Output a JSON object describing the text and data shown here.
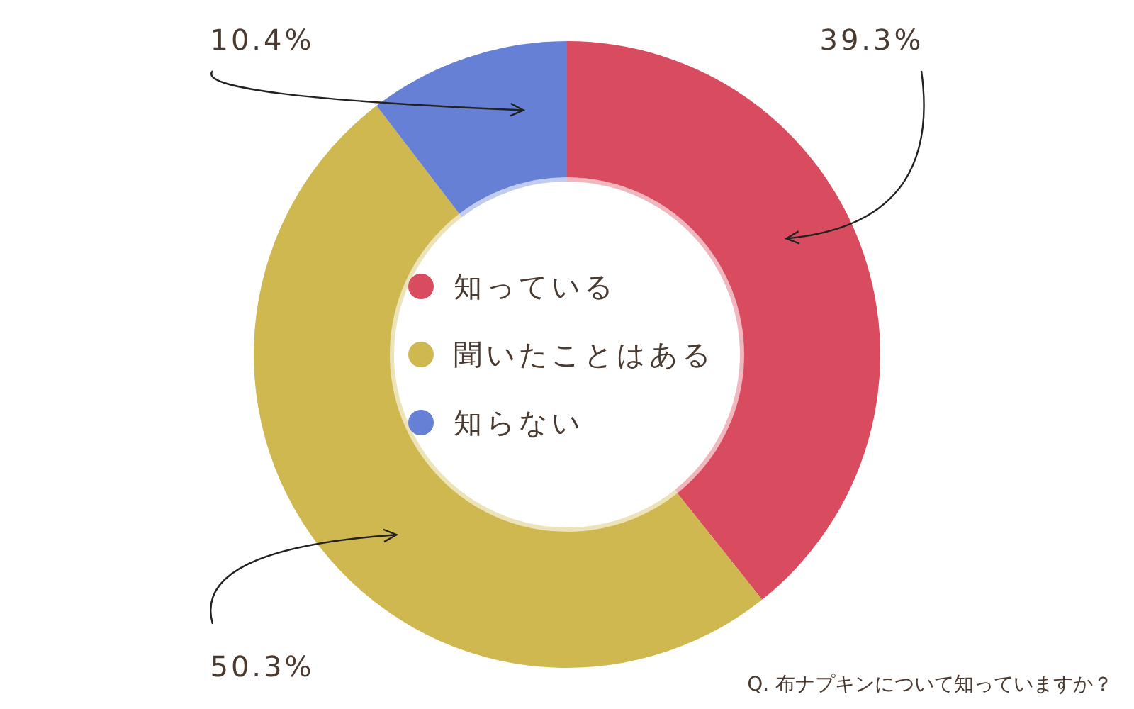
{
  "chart_data": {
    "type": "donut",
    "categories": [
      "知っている",
      "聞いたことはある",
      "知らない"
    ],
    "values": [
      39.3,
      50.3,
      10.4
    ],
    "value_labels": [
      "39.3%",
      "50.3%",
      "10.4%"
    ],
    "colors": [
      "#d94b5e",
      "#cfb84f",
      "#6580d4"
    ],
    "legend": "center",
    "annotations": [
      "Q. 布ナプキンについて知っていますか？"
    ]
  }
}
